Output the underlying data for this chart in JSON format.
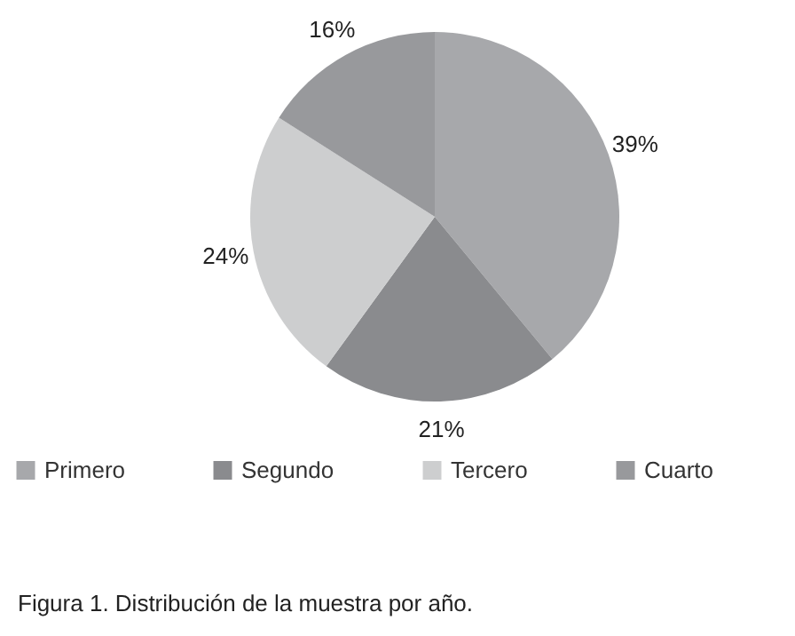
{
  "chart_data": {
    "type": "pie",
    "categories": [
      "Primero",
      "Segundo",
      "Tercero",
      "Cuarto"
    ],
    "values": [
      39,
      21,
      24,
      16
    ],
    "colors": [
      "#a7a8ab",
      "#8a8b8e",
      "#cdcecf",
      "#98999c"
    ],
    "value_labels": [
      "39%",
      "21%",
      "24%",
      "16%"
    ],
    "legend": "bottom",
    "annotations": [
      "Figura 1. Distribución de la muestra por año."
    ]
  }
}
